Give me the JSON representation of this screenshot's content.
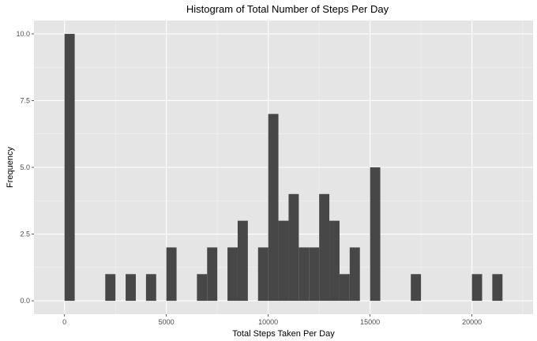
{
  "chart_data": {
    "type": "bar",
    "title": "Histogram of Total Number of Steps Per Day",
    "xlabel": "Total Steps Taken Per Day",
    "ylabel": "Frequency",
    "bin_width": 500,
    "bins": [
      {
        "x0": 0,
        "x1": 500,
        "count": 10
      },
      {
        "x0": 2000,
        "x1": 2500,
        "count": 1
      },
      {
        "x0": 3000,
        "x1": 3500,
        "count": 1
      },
      {
        "x0": 4000,
        "x1": 4500,
        "count": 1
      },
      {
        "x0": 5000,
        "x1": 5500,
        "count": 2
      },
      {
        "x0": 6500,
        "x1": 7000,
        "count": 1
      },
      {
        "x0": 7000,
        "x1": 7500,
        "count": 2
      },
      {
        "x0": 8000,
        "x1": 8500,
        "count": 2
      },
      {
        "x0": 8500,
        "x1": 9000,
        "count": 3
      },
      {
        "x0": 9500,
        "x1": 10000,
        "count": 2
      },
      {
        "x0": 10000,
        "x1": 10500,
        "count": 7
      },
      {
        "x0": 10500,
        "x1": 11000,
        "count": 3
      },
      {
        "x0": 11000,
        "x1": 11500,
        "count": 4
      },
      {
        "x0": 11500,
        "x1": 12000,
        "count": 2
      },
      {
        "x0": 12000,
        "x1": 12500,
        "count": 2
      },
      {
        "x0": 12500,
        "x1": 13000,
        "count": 4
      },
      {
        "x0": 13000,
        "x1": 13500,
        "count": 3
      },
      {
        "x0": 13500,
        "x1": 14000,
        "count": 1
      },
      {
        "x0": 14000,
        "x1": 14500,
        "count": 2
      },
      {
        "x0": 15000,
        "x1": 15500,
        "count": 5
      },
      {
        "x0": 17000,
        "x1": 17500,
        "count": 1
      },
      {
        "x0": 20000,
        "x1": 20500,
        "count": 1
      },
      {
        "x0": 21000,
        "x1": 21500,
        "count": 1
      }
    ],
    "xlim": [
      -1500,
      23000
    ],
    "ylim": [
      -0.5,
      10.5
    ],
    "x_ticks": [
      0,
      5000,
      10000,
      15000,
      20000
    ],
    "x_tick_labels": [
      "0",
      "5000",
      "10000",
      "15000",
      "20000"
    ],
    "y_ticks": [
      0,
      2.5,
      5,
      7.5,
      10
    ],
    "y_tick_labels": [
      "0.0",
      "2.5",
      "5.0",
      "7.5",
      "10.0"
    ],
    "grid": true,
    "colors": {
      "panel_background": "#e5e5e5",
      "grid_major": "#ffffff",
      "grid_minor": "#f2f2f2",
      "bar_fill": "#474747",
      "tick_text": "#4d4d4d",
      "tick_mark": "#333333"
    }
  }
}
